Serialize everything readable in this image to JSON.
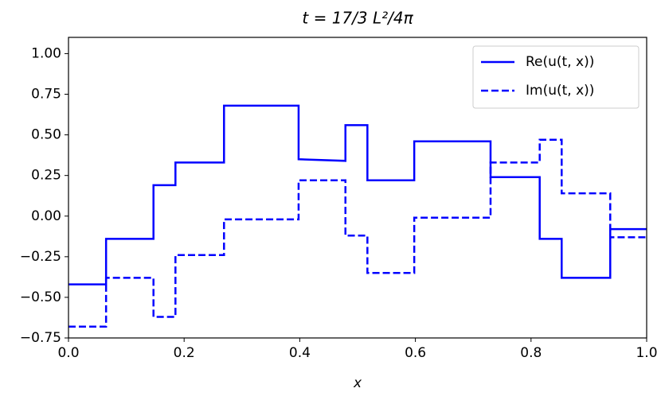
{
  "chart_data": {
    "type": "line",
    "title": "t = 17/3 L²/4π",
    "xlabel": "x",
    "x": [
      0,
      0.065,
      0.065,
      0.147,
      0.147,
      0.185,
      0.185,
      0.269,
      0.269,
      0.398,
      0.398,
      0.479,
      0.479,
      0.517,
      0.517,
      0.598,
      0.598,
      0.73,
      0.73,
      0.815,
      0.815,
      0.853,
      0.853,
      0.937,
      0.937,
      1.0
    ],
    "series": [
      {
        "name": "Re(u(t, x))",
        "color": "#0000ff",
        "dashed": false,
        "values": [
          -0.42,
          -0.42,
          -0.14,
          -0.14,
          0.19,
          0.19,
          0.33,
          0.33,
          0.68,
          0.68,
          0.35,
          0.34,
          0.56,
          0.56,
          0.22,
          0.22,
          0.46,
          0.46,
          0.24,
          0.24,
          -0.14,
          -0.14,
          -0.38,
          -0.38,
          -0.08,
          -0.08
        ]
      },
      {
        "name": "Im(u(t, x))",
        "color": "#0000ff",
        "dashed": true,
        "values": [
          -0.68,
          -0.68,
          -0.38,
          -0.38,
          -0.62,
          -0.62,
          -0.24,
          -0.24,
          -0.02,
          -0.02,
          0.22,
          0.22,
          -0.12,
          -0.12,
          -0.35,
          -0.35,
          -0.01,
          -0.01,
          0.33,
          0.33,
          0.47,
          0.47,
          0.14,
          0.14,
          -0.13,
          -0.13
        ]
      }
    ],
    "xlim": [
      0,
      1
    ],
    "ylim": [
      -0.75,
      1.1
    ],
    "xticks": [
      {
        "value": 0,
        "label": "0.0"
      },
      0.2,
      0.4,
      0.6,
      0.8,
      {
        "value": 1,
        "label": "1.0"
      }
    ],
    "yticks": [
      {
        "value": -0.75,
        "label": "−0.75"
      },
      {
        "value": -0.5,
        "label": "−0.50"
      },
      {
        "value": -0.25,
        "label": "−0.25"
      },
      {
        "value": 0,
        "label": "0.00"
      },
      {
        "value": 0.25,
        "label": "0.25"
      },
      {
        "value": 0.5,
        "label": "0.50"
      },
      {
        "value": 0.75,
        "label": "0.75"
      },
      {
        "value": 1,
        "label": "1.00"
      }
    ],
    "legend": "upper right"
  }
}
